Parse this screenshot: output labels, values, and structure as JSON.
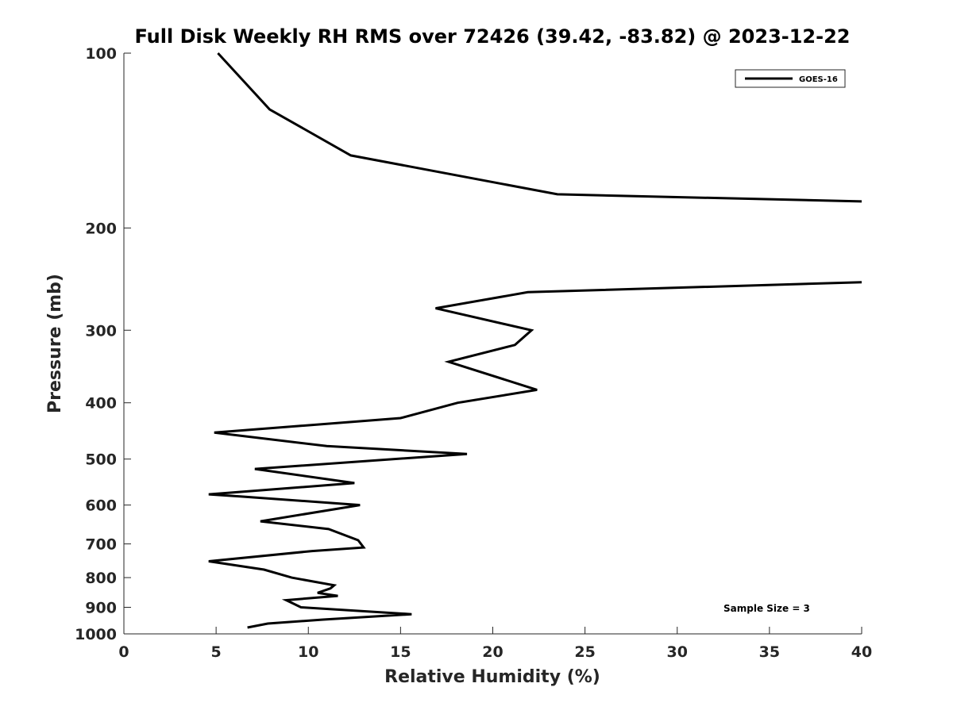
{
  "chart_data": {
    "type": "line",
    "title": "Full Disk Weekly RH RMS over 72426 (39.42, -83.82) @ 2023-12-22",
    "xlabel": "Relative Humidity (%)",
    "ylabel": "Pressure (mb)",
    "xlim": [
      0,
      40
    ],
    "ylim": [
      100,
      1000
    ],
    "y_scale": "log",
    "y_reversed": true,
    "grid": false,
    "legend_position": "top-right",
    "x_ticks": [
      "0",
      "5",
      "10",
      "15",
      "20",
      "25",
      "30",
      "35",
      "40"
    ],
    "y_ticks": [
      "100",
      "200",
      "300",
      "400",
      "500",
      "600",
      "700",
      "800",
      "900",
      "1000"
    ],
    "series": [
      {
        "name": "GOES-16",
        "color": "#000000",
        "points": [
          [
            5.1,
            100
          ],
          [
            7.9,
            125
          ],
          [
            12.3,
            150
          ],
          [
            23.5,
            175
          ],
          [
            40.0,
            180
          ],
          [
            null,
            null
          ],
          [
            40.0,
            248
          ],
          [
            21.9,
            258
          ],
          [
            16.9,
            275
          ],
          [
            22.1,
            300
          ],
          [
            21.2,
            318
          ],
          [
            17.6,
            340
          ],
          [
            22.4,
            380
          ],
          [
            18.1,
            400
          ],
          [
            15.0,
            425
          ],
          [
            4.9,
            450
          ],
          [
            11.0,
            475
          ],
          [
            18.6,
            490
          ],
          [
            7.1,
            520
          ],
          [
            12.5,
            550
          ],
          [
            4.6,
            575
          ],
          [
            6.3,
            580
          ],
          [
            12.8,
            600
          ],
          [
            7.4,
            640
          ],
          [
            11.1,
            660
          ],
          [
            12.7,
            690
          ],
          [
            13.0,
            710
          ],
          [
            10.2,
            720
          ],
          [
            4.6,
            750
          ],
          [
            7.6,
            775
          ],
          [
            9.1,
            800
          ],
          [
            11.4,
            825
          ],
          [
            11.2,
            835
          ],
          [
            10.5,
            850
          ],
          [
            11.6,
            860
          ],
          [
            8.8,
            875
          ],
          [
            9.6,
            900
          ],
          [
            15.6,
            925
          ],
          [
            10.8,
            945
          ],
          [
            7.8,
            960
          ],
          [
            6.7,
            975
          ]
        ]
      }
    ],
    "annotations": [
      "Sample Size = 3"
    ]
  }
}
